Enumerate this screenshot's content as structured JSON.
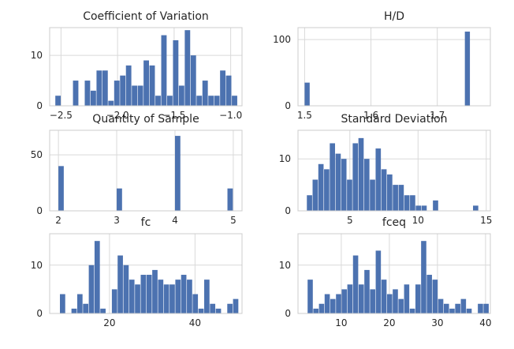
{
  "chart_data": [
    {
      "type": "bar",
      "title": "Coefficient of Variation",
      "xlim": [
        -2.6,
        -0.9
      ],
      "ylim": [
        0,
        15.5
      ],
      "xticks": [
        "−2.5",
        "−2.0",
        "−1.5",
        "−1.0"
      ],
      "xtick_values": [
        -2.5,
        -2.0,
        -1.5,
        -1.0
      ],
      "yticks": [
        "0",
        "10"
      ],
      "ytick_values": [
        0,
        10
      ],
      "bins": {
        "start": -2.55,
        "width": 0.052
      },
      "values": [
        2,
        0,
        0,
        5,
        0,
        5,
        3,
        7,
        7,
        1,
        5,
        6,
        8,
        4,
        4,
        9,
        8,
        2,
        14,
        2,
        13,
        4,
        15,
        10,
        2,
        5,
        2,
        2,
        7,
        6,
        2
      ]
    },
    {
      "type": "bar",
      "title": "H/D",
      "xlim": [
        1.49,
        1.78
      ],
      "ylim": [
        0,
        118
      ],
      "xticks": [
        "1.5",
        "1.6",
        "1.7"
      ],
      "xtick_values": [
        1.5,
        1.6,
        1.7
      ],
      "yticks": [
        "0",
        "100"
      ],
      "ytick_values": [
        0,
        100
      ],
      "bins": {
        "start": 1.5,
        "width": 0.00833
      },
      "values": [
        35,
        0,
        0,
        0,
        0,
        0,
        0,
        0,
        0,
        0,
        0,
        0,
        0,
        0,
        0,
        0,
        0,
        0,
        0,
        0,
        0,
        0,
        0,
        0,
        0,
        0,
        0,
        0,
        0,
        112
      ]
    },
    {
      "type": "bar",
      "title": "Quantity of Sample",
      "xlim": [
        1.85,
        5.15
      ],
      "ylim": [
        0,
        72
      ],
      "xticks": [
        "2",
        "3",
        "4",
        "5"
      ],
      "xtick_values": [
        2,
        3,
        4,
        5
      ],
      "yticks": [
        "0",
        "50"
      ],
      "ytick_values": [
        0,
        50
      ],
      "bins": {
        "start": 2,
        "width": 0.1
      },
      "values": [
        40,
        0,
        0,
        0,
        0,
        0,
        0,
        0,
        0,
        0,
        20,
        0,
        0,
        0,
        0,
        0,
        0,
        0,
        0,
        0,
        67,
        0,
        0,
        0,
        0,
        0,
        0,
        0,
        0,
        20
      ]
    },
    {
      "type": "bar",
      "title": "Standard Deviation",
      "xlim": [
        1.2,
        15.3
      ],
      "ylim": [
        0,
        15.5
      ],
      "xticks": [
        "5",
        "10",
        "15"
      ],
      "xtick_values": [
        5,
        10,
        15
      ],
      "yticks": [
        "0",
        "10"
      ],
      "ytick_values": [
        0,
        10
      ],
      "bins": {
        "start": 1.85,
        "width": 0.42
      },
      "values": [
        3,
        6,
        9,
        8,
        13,
        11,
        10,
        6,
        13,
        14,
        10,
        6,
        12,
        8,
        7,
        5,
        5,
        3,
        3,
        1,
        1,
        0,
        2,
        0,
        0,
        0,
        0,
        0,
        0,
        1
      ]
    },
    {
      "type": "bar",
      "title": "fc",
      "xlim": [
        6,
        51
      ],
      "ylim": [
        0,
        16.5
      ],
      "xticks": [
        "20",
        "40"
      ],
      "xtick_values": [
        20,
        40
      ],
      "yticks": [
        "0",
        "10"
      ],
      "ytick_values": [
        0,
        10
      ],
      "bins": {
        "start": 8.4,
        "width": 1.35
      },
      "values": [
        4,
        0,
        1,
        4,
        2,
        10,
        15,
        1,
        0,
        5,
        12,
        10,
        7,
        6,
        8,
        8,
        9,
        7,
        6,
        6,
        7,
        8,
        7,
        4,
        1,
        7,
        2,
        1,
        0,
        2,
        3
      ]
    },
    {
      "type": "bar",
      "title": "fceq",
      "xlim": [
        1,
        41
      ],
      "ylim": [
        0,
        16.5
      ],
      "xticks": [
        "10",
        "20",
        "30",
        "40"
      ],
      "xtick_values": [
        10,
        20,
        30,
        40
      ],
      "yticks": [
        "0",
        "10"
      ],
      "ytick_values": [
        0,
        10
      ],
      "bins": {
        "start": 3,
        "width": 1.18
      },
      "values": [
        7,
        1,
        2,
        4,
        3,
        4,
        5,
        6,
        12,
        6,
        9,
        5,
        13,
        7,
        4,
        5,
        3,
        6,
        1,
        6,
        15,
        8,
        7,
        3,
        2,
        1,
        2,
        3,
        1,
        0,
        2,
        2
      ]
    }
  ],
  "colors": {
    "bar": "#4c72b0",
    "grid": "#d9d9d9",
    "spine": "#cccccc"
  }
}
